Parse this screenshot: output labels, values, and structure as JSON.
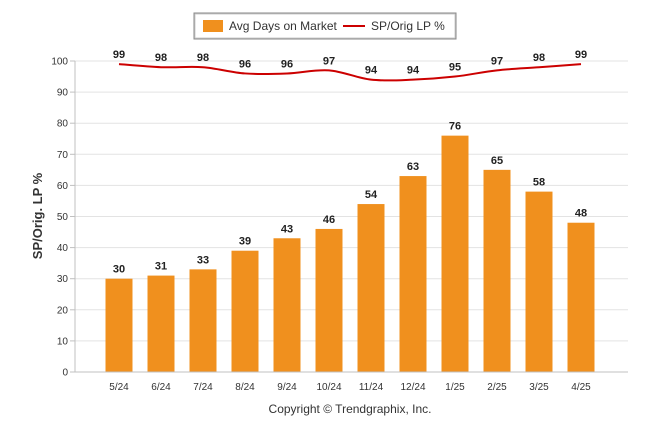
{
  "chart_data": {
    "type": "bar",
    "categories": [
      "5/24",
      "6/24",
      "7/24",
      "8/24",
      "9/24",
      "10/24",
      "11/24",
      "12/24",
      "1/25",
      "2/25",
      "3/25",
      "4/25"
    ],
    "series": [
      {
        "name": "Avg Days on Market",
        "type": "bar",
        "values": [
          30,
          31,
          33,
          39,
          43,
          46,
          54,
          63,
          76,
          65,
          58,
          48
        ],
        "color": "#f0901e"
      },
      {
        "name": "SP/Orig LP %",
        "type": "line",
        "values": [
          99,
          98,
          98,
          96,
          96,
          97,
          94,
          94,
          95,
          97,
          98,
          99
        ],
        "color": "#cc0000"
      }
    ],
    "ylabel": "SP/Orig. LP %",
    "ylim": [
      0,
      100
    ],
    "yticks": [
      0,
      10,
      20,
      30,
      40,
      50,
      60,
      70,
      80,
      90,
      100
    ],
    "grid": true,
    "legend_position": "top-center",
    "credit": "Copyright © Trendgraphix, Inc."
  }
}
